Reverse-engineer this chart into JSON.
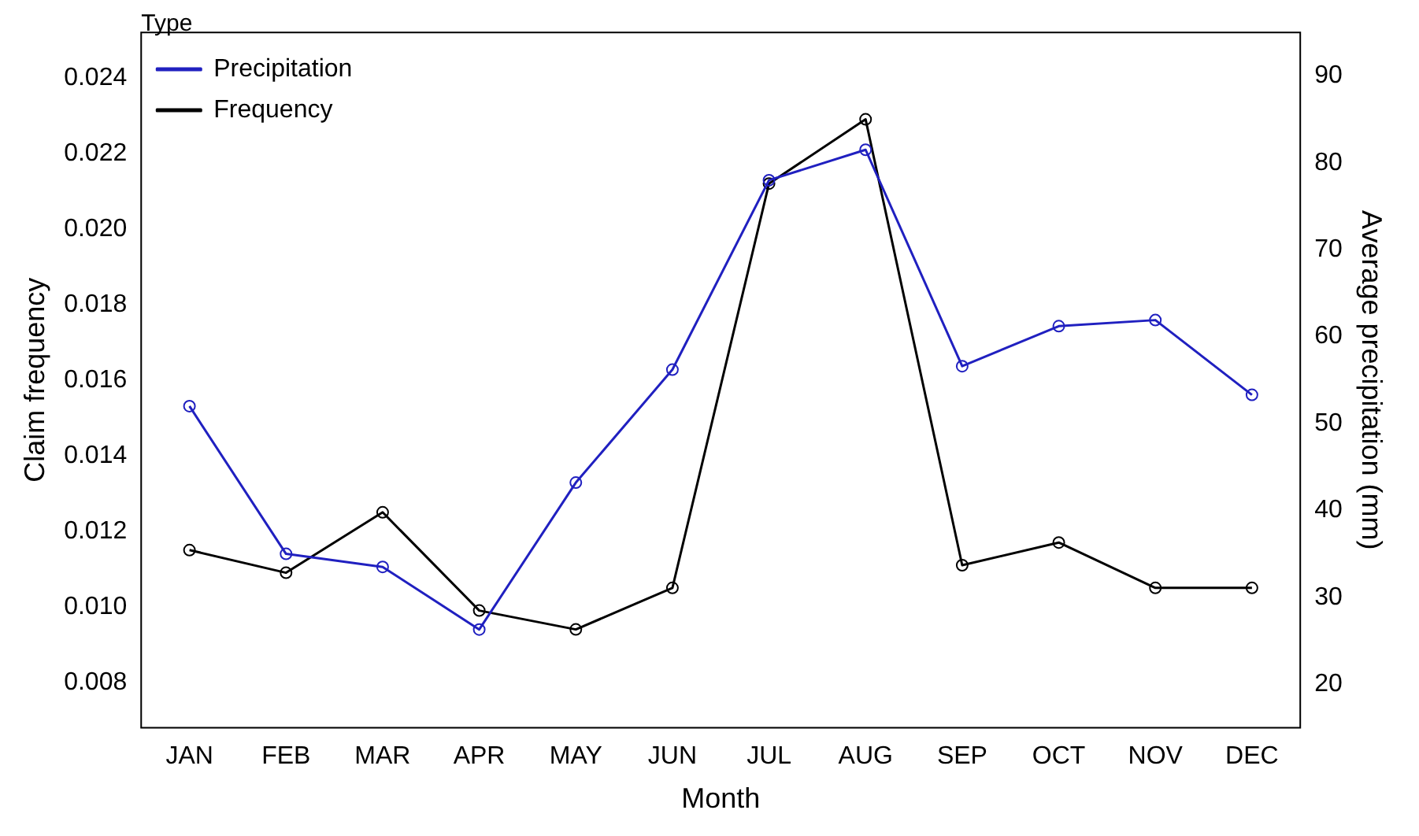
{
  "chart_data": {
    "type": "line",
    "xlabel": "Month",
    "ylabel": "Claim frequency",
    "y2label": "Average precipitation (mm)",
    "legend_title": "Type",
    "categories": [
      "JAN",
      "FEB",
      "MAR",
      "APR",
      "MAY",
      "JUN",
      "JUL",
      "AUG",
      "SEP",
      "OCT",
      "NOV",
      "DEC"
    ],
    "series": [
      {
        "name": "Precipitation",
        "color": "#2020c0",
        "axis": "y2",
        "values": [
          52.0,
          35.0,
          33.5,
          26.3,
          43.2,
          56.2,
          78.0,
          81.5,
          56.6,
          61.2,
          61.9,
          53.3
        ]
      },
      {
        "name": "Frequency",
        "color": "#000000",
        "values": [
          0.0115,
          0.0109,
          0.0125,
          0.0099,
          0.0094,
          0.0105,
          0.0212,
          0.0229,
          0.0111,
          0.0117,
          0.0105,
          0.0105
        ]
      }
    ],
    "ylim": [
      0.0068,
      0.0252
    ],
    "yticks": [
      0.008,
      {
        "value": 0.01,
        "label": "0.010"
      },
      0.012,
      0.014,
      0.016,
      0.018,
      {
        "value": 0.02,
        "label": "0.020"
      },
      0.022,
      0.024
    ],
    "y2lim": [
      15,
      95
    ],
    "y2ticks": [
      20,
      30,
      40,
      50,
      60,
      70,
      80,
      90
    ],
    "grid": false,
    "legend": "top left",
    "marker": "circle",
    "line_style": "solid"
  }
}
